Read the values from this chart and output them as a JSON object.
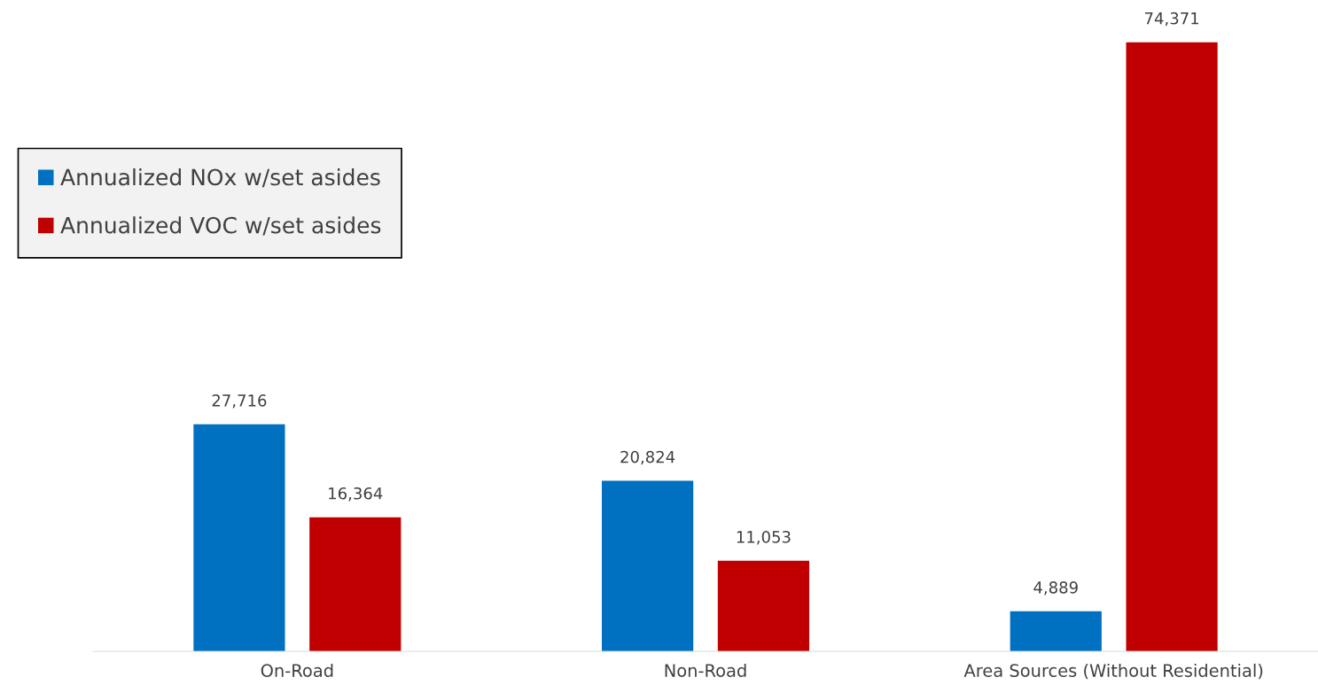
{
  "chart_data": {
    "type": "bar",
    "categories": [
      "On-Road",
      "Non-Road",
      "Area Sources (Without Residential)"
    ],
    "series": [
      {
        "name": "Annualized NOx w/set asides",
        "color": "#0070c0",
        "values": [
          27716,
          20824,
          4889
        ],
        "value_labels": [
          "27,716",
          "20,824",
          "4,889"
        ]
      },
      {
        "name": "Annualized VOC w/set asides",
        "color": "#c00000",
        "values": [
          16364,
          11053,
          74371
        ],
        "value_labels": [
          "16,364",
          "11,053",
          "74,371"
        ]
      }
    ],
    "legend": "top left",
    "grid": false,
    "tick_labels": "x"
  }
}
